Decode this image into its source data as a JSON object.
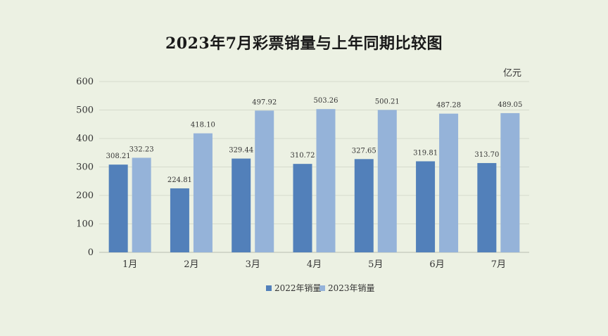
{
  "chart_data": {
    "type": "bar",
    "title": "2023年7月彩票销量与上年同期比较图",
    "unit_label": "亿元",
    "categories": [
      "1月",
      "2月",
      "3月",
      "4月",
      "5月",
      "6月",
      "7月"
    ],
    "series": [
      {
        "name": "2022年销量",
        "color": "#5280ba",
        "values": [
          308.21,
          224.81,
          329.44,
          310.72,
          327.65,
          319.81,
          313.7
        ],
        "labels": [
          "308.21",
          "224.81",
          "329.44",
          "310.72",
          "327.65",
          "319.81",
          "313.70"
        ]
      },
      {
        "name": "2023年销量",
        "color": "#95b3d9",
        "values": [
          332.23,
          418.1,
          497.92,
          503.26,
          500.21,
          487.28,
          489.05
        ],
        "labels": [
          "332.23",
          "418.10",
          "497.92",
          "503.26",
          "500.21",
          "487.28",
          "489.05"
        ]
      }
    ],
    "y_ticks": [
      "0",
      "100",
      "200",
      "300",
      "400",
      "500",
      "600"
    ],
    "ylim": [
      0,
      600
    ],
    "grid": true,
    "legend_position": "bottom"
  }
}
